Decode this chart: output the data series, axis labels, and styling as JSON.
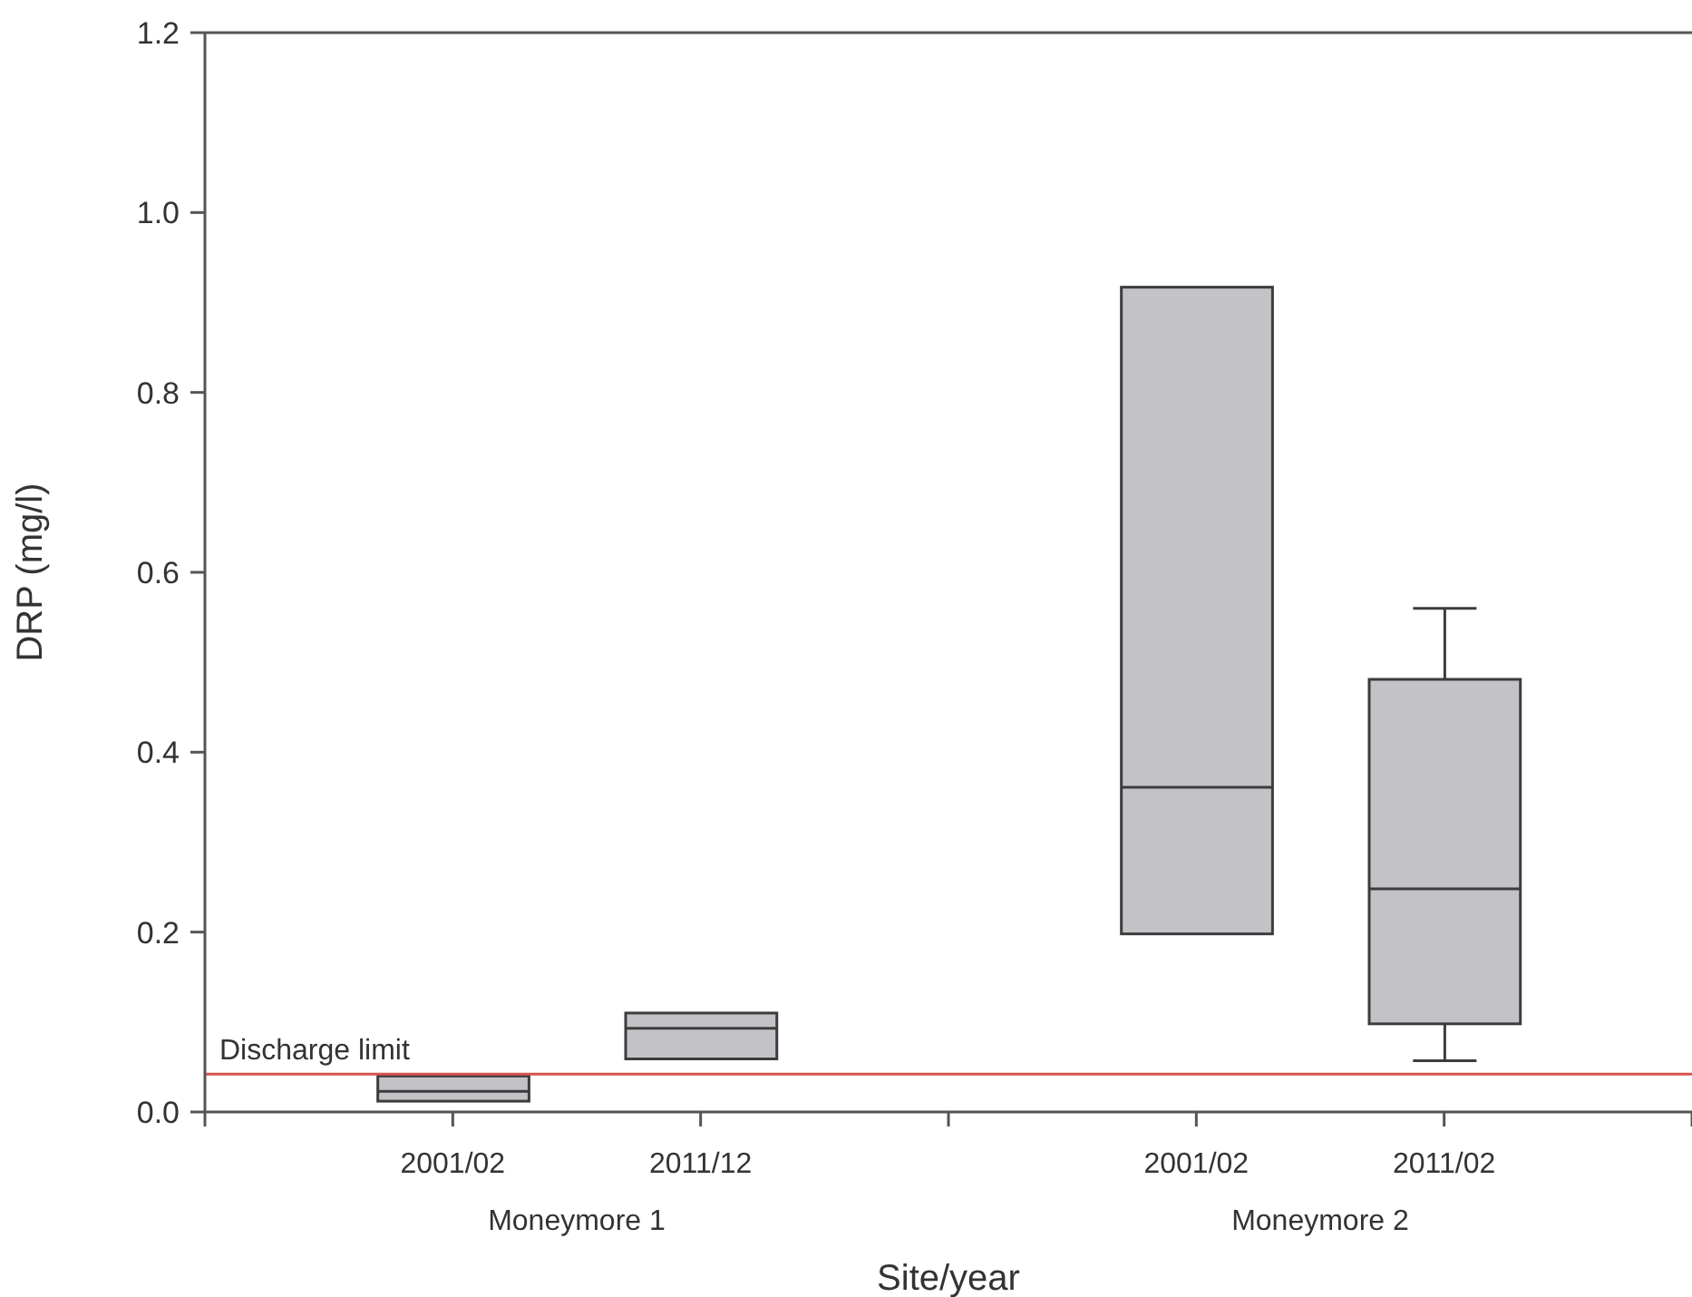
{
  "chart_data": {
    "type": "box",
    "xlabel": "Site/year",
    "ylabel": "DRP (mg/l)",
    "categories": [
      "2001/02",
      "2011/12",
      null,
      "2001/02",
      "2011/02"
    ],
    "boxes": [
      {
        "low": 0.012,
        "q1": 0.012,
        "median": 0.023,
        "q3": 0.04,
        "high": 0.04
      },
      {
        "low": 0.059,
        "q1": 0.059,
        "median": 0.093,
        "q3": 0.11,
        "high": 0.11
      },
      null,
      {
        "low": 0.198,
        "q1": 0.198,
        "median": 0.361,
        "q3": 0.917,
        "high": 0.917
      },
      {
        "low": 0.057,
        "q1": 0.098,
        "median": 0.248,
        "q3": 0.481,
        "high": 0.56
      }
    ],
    "color": "#c3c3c7",
    "ylim": [
      0,
      1.2
    ],
    "yticks": [
      {
        "value": 0,
        "label": "0.0"
      },
      0.2,
      0.4,
      0.6,
      0.8,
      {
        "value": 1,
        "label": "1.0"
      },
      1.2
    ],
    "ref_lines": [
      {
        "axis": "y",
        "value": 0.042,
        "label": "Discharge limit",
        "color": "#d9534f"
      }
    ],
    "annotations": [
      "Moneymore 1",
      "Moneymore 2"
    ]
  }
}
